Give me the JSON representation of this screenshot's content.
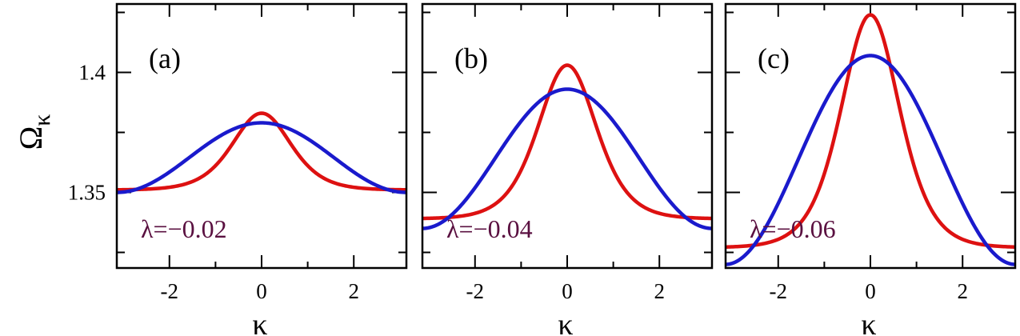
{
  "colors": {
    "red": "#dd1111",
    "blue": "#1a1acc",
    "annotation": "#5a1040"
  },
  "ylabel_main": "Ω",
  "ylabel_sub": "κ",
  "chart_data": [
    {
      "type": "line",
      "panel_label": "(a)",
      "annotation": "λ=−0.02",
      "xlabel": "κ",
      "xlim": [
        -3.14159,
        3.14159
      ],
      "ylim": [
        1.3185,
        1.4285
      ],
      "xticks": [
        -2,
        0,
        2
      ],
      "xtick_labels": [
        "-2",
        "0",
        "2"
      ],
      "yticks": [
        1.35,
        1.4
      ],
      "ytick_labels": [
        "1.35",
        "1.4"
      ],
      "series": [
        {
          "color": "red",
          "model": "sech2",
          "params": {
            "a": 1.351,
            "b": 0.032,
            "c": 0.85
          }
        },
        {
          "color": "blue",
          "model": "cos",
          "params": {
            "a": 1.3645,
            "b": 0.0145
          }
        }
      ]
    },
    {
      "type": "line",
      "panel_label": "(b)",
      "annotation": "λ=−0.04",
      "xlabel": "κ",
      "xlim": [
        -3.14159,
        3.14159
      ],
      "ylim": [
        1.3185,
        1.4285
      ],
      "xticks": [
        -2,
        0,
        2
      ],
      "xtick_labels": [
        "-2",
        "0",
        "2"
      ],
      "yticks": [
        1.35,
        1.4
      ],
      "ytick_labels": [
        "1.35",
        "1.4"
      ],
      "series": [
        {
          "color": "red",
          "model": "sech2",
          "params": {
            "a": 1.339,
            "b": 0.064,
            "c": 0.85
          }
        },
        {
          "color": "blue",
          "model": "cos",
          "params": {
            "a": 1.364,
            "b": 0.029
          }
        }
      ]
    },
    {
      "type": "line",
      "panel_label": "(c)",
      "annotation": "λ=−0.06",
      "xlabel": "κ",
      "xlim": [
        -3.14159,
        3.14159
      ],
      "ylim": [
        1.3185,
        1.4285
      ],
      "xticks": [
        -2,
        0,
        2
      ],
      "xtick_labels": [
        "-2",
        "0",
        "2"
      ],
      "yticks": [
        1.35,
        1.4
      ],
      "ytick_labels": [
        "1.35",
        "1.4"
      ],
      "series": [
        {
          "color": "red",
          "model": "sech2",
          "params": {
            "a": 1.327,
            "b": 0.097,
            "c": 0.85
          }
        },
        {
          "color": "blue",
          "model": "cos",
          "params": {
            "a": 1.3635,
            "b": 0.0435
          }
        }
      ]
    }
  ]
}
